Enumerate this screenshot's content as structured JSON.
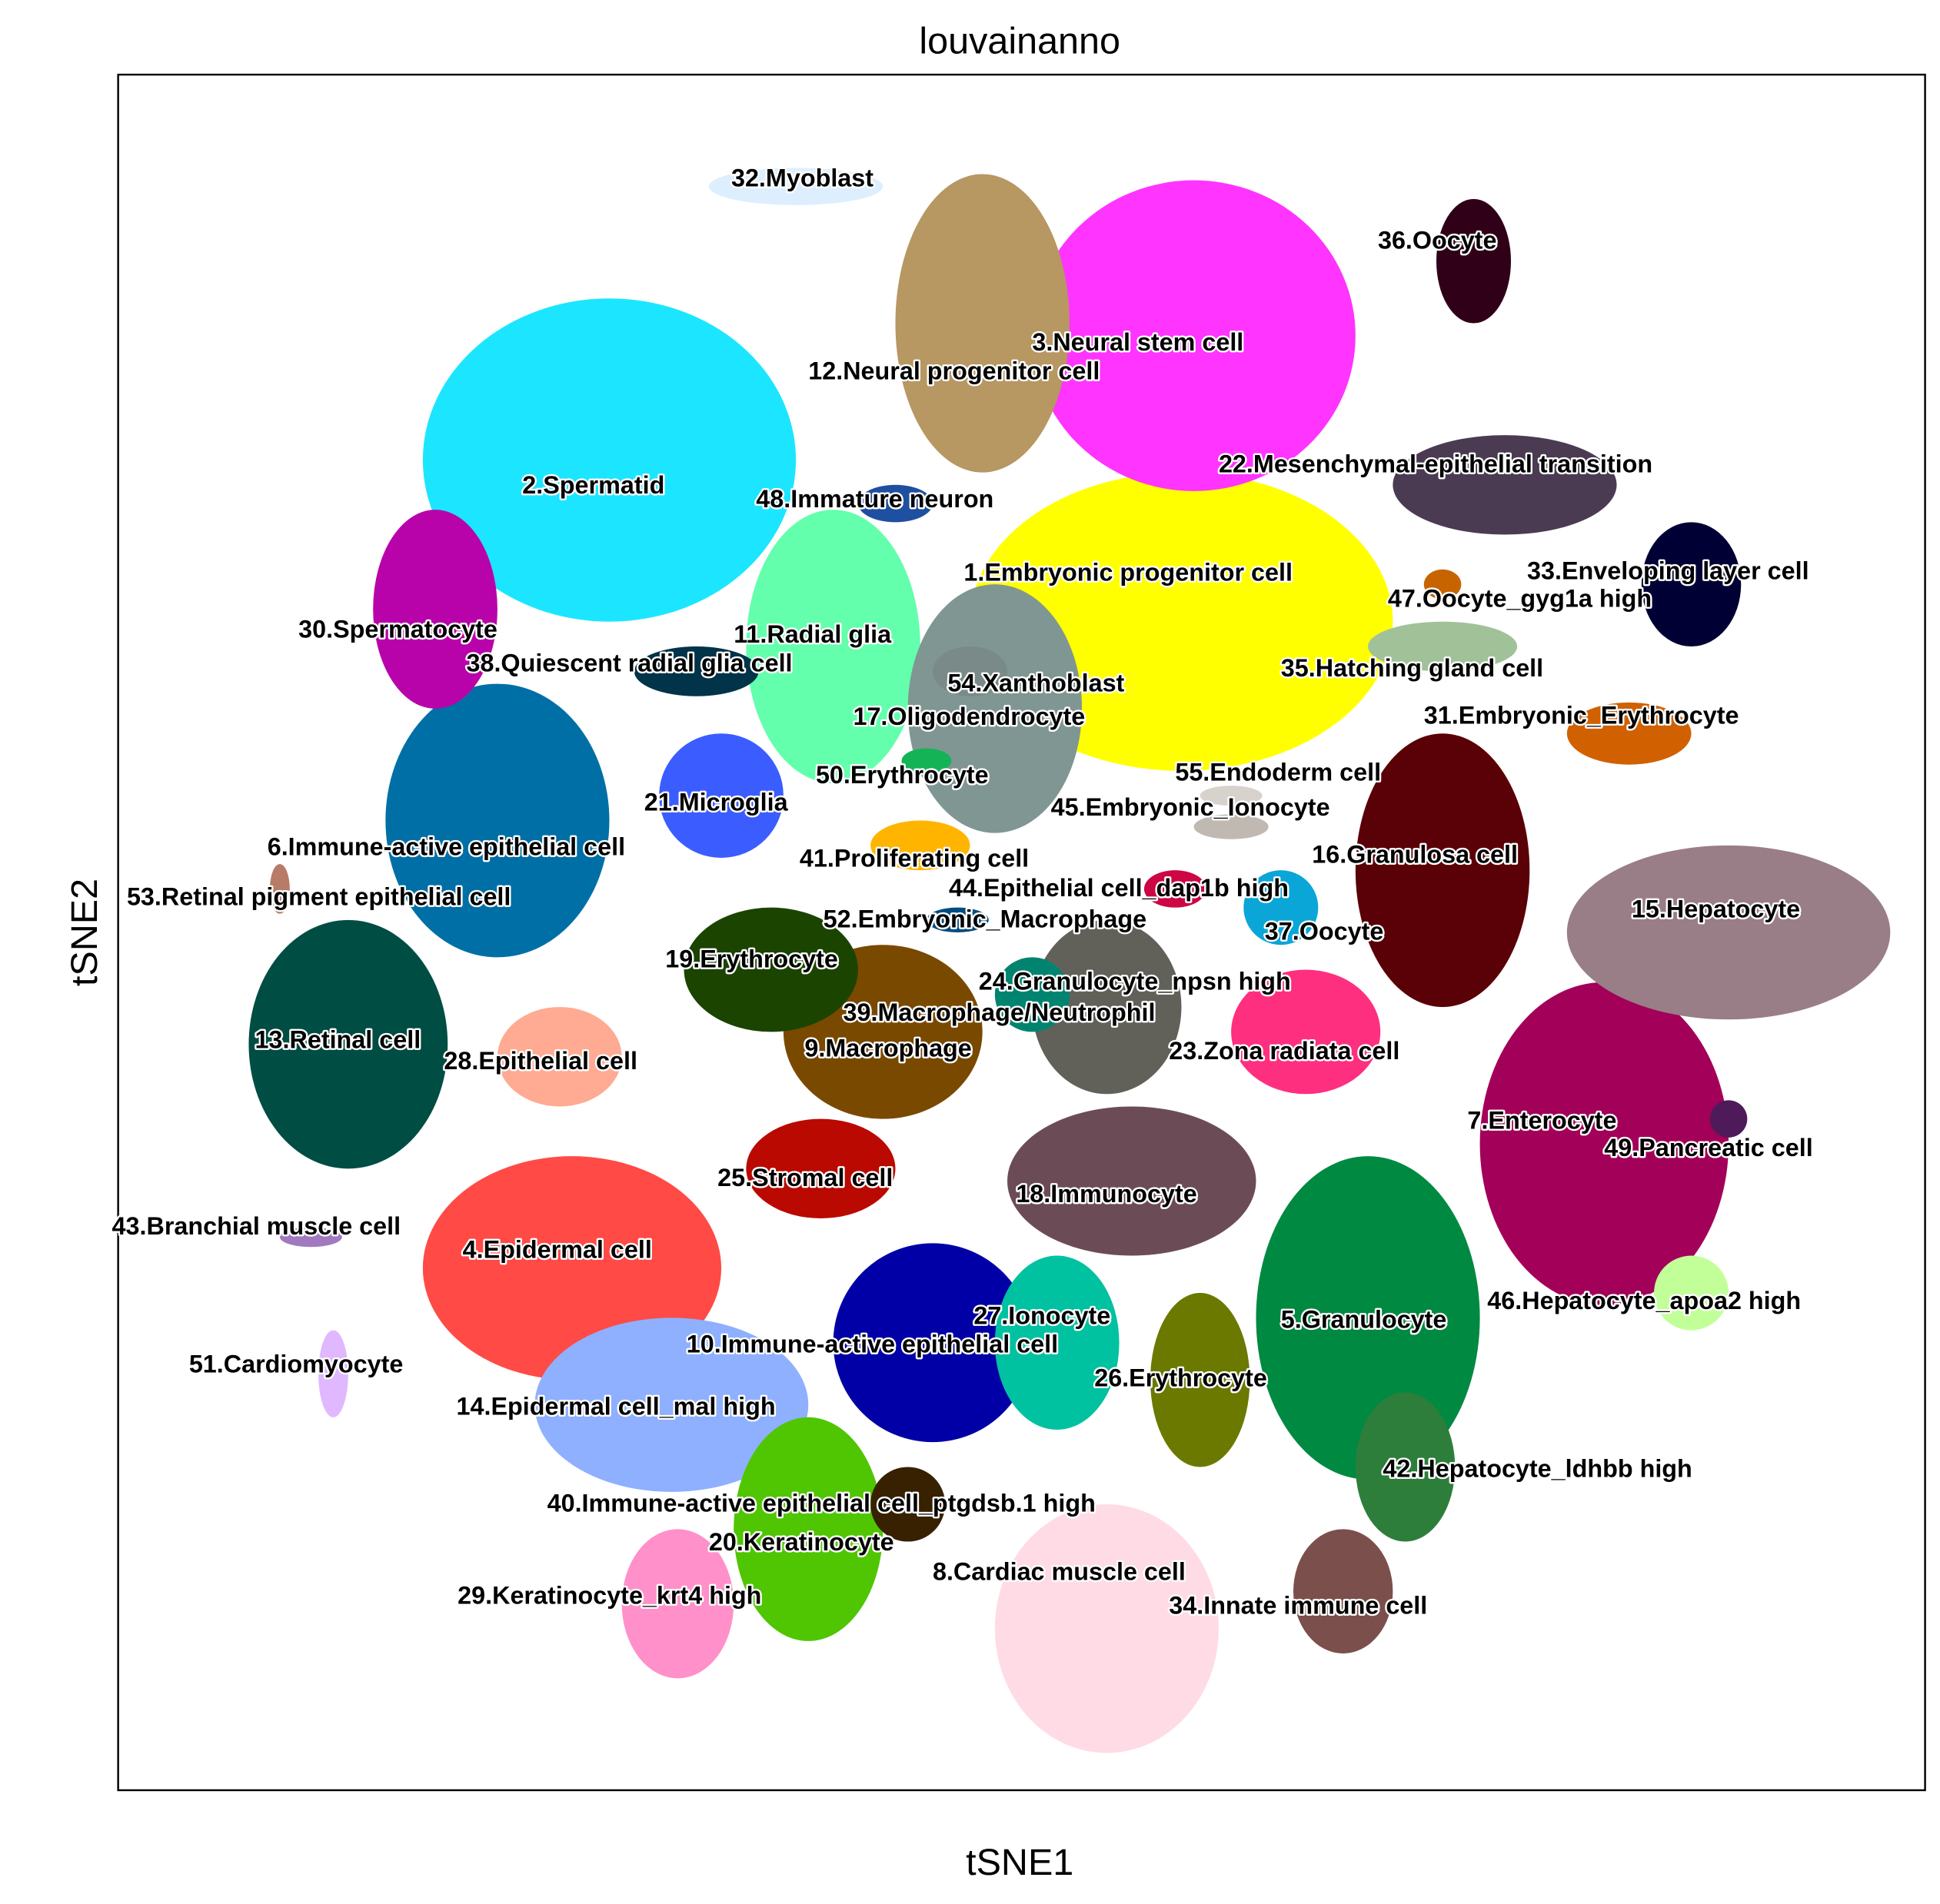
{
  "chart_data": {
    "type": "scatter",
    "title": "louvainanno",
    "xlabel": "tSNE1",
    "ylabel": "tSNE2",
    "clusters": [
      {
        "name": "1.Embryonic progenitor cell",
        "color": "#ffff00"
      },
      {
        "name": "2.Spermatid",
        "color": "#1ce6ff"
      },
      {
        "name": "3.Neural stem cell",
        "color": "#ff34ff"
      },
      {
        "name": "4.Epidermal cell",
        "color": "#ff4a46"
      },
      {
        "name": "5.Granulocyte",
        "color": "#008941"
      },
      {
        "name": "6.Immune-active epithelial cell",
        "color": "#006fa6"
      },
      {
        "name": "7.Enterocyte",
        "color": "#a30059"
      },
      {
        "name": "8.Cardiac muscle cell",
        "color": "#ffdbe5"
      },
      {
        "name": "9.Macrophage",
        "color": "#7a4900"
      },
      {
        "name": "10.Immune-active epithelial cell",
        "color": "#0000a6"
      },
      {
        "name": "11.Radial glia",
        "color": "#63ffac"
      },
      {
        "name": "12.Neural progenitor cell",
        "color": "#b79762"
      },
      {
        "name": "13.Retinal  cell",
        "color": "#004d43"
      },
      {
        "name": "14.Epidermal cell_mal high",
        "color": "#8fb0ff"
      },
      {
        "name": "15.Hepatocyte",
        "color": "#997d87"
      },
      {
        "name": "16.Granulosa cell",
        "color": "#5a0007"
      },
      {
        "name": "17.Oligodendrocyte",
        "color": "#809693"
      },
      {
        "name": "18.Immunocyte",
        "color": "#6b4c56"
      },
      {
        "name": "19.Erythrocyte",
        "color": "#1b4400"
      },
      {
        "name": "20.Keratinocyte",
        "color": "#4fc601"
      },
      {
        "name": "21.Microglia",
        "color": "#3b5dff"
      },
      {
        "name": "22.Mesenchymal-epithelial transition",
        "color": "#4a3b53"
      },
      {
        "name": "23.Zona radiata cell",
        "color": "#ff2f80"
      },
      {
        "name": "24.Granulocyte_npsn high",
        "color": "#61615a"
      },
      {
        "name": "25.Stromal cell",
        "color": "#ba0900"
      },
      {
        "name": "26.Erythrocyte",
        "color": "#6b7900"
      },
      {
        "name": "27.Ionocyte",
        "color": "#00c2a0"
      },
      {
        "name": "28.Epithelial cell",
        "color": "#ffaa92"
      },
      {
        "name": "29.Keratinocyte_krt4 high",
        "color": "#ff90c9"
      },
      {
        "name": "30.Spermatocyte",
        "color": "#b903aa"
      },
      {
        "name": "31.Embryonic_Erythrocyte",
        "color": "#d16100"
      },
      {
        "name": "32.Myoblast",
        "color": "#ddefff"
      },
      {
        "name": "33.Enveloping layer cell",
        "color": "#000035"
      },
      {
        "name": "34.Innate immune cell",
        "color": "#7b4f4b"
      },
      {
        "name": "35.Hatching gland cell",
        "color": "#a1c299"
      },
      {
        "name": "36.Oocyte",
        "color": "#300018"
      },
      {
        "name": "37.Oocyte",
        "color": "#0aa6d8"
      },
      {
        "name": "38.Quiescent radial glia cell",
        "color": "#013349"
      },
      {
        "name": "39.Macrophage/Neutrophil",
        "color": "#00846f"
      },
      {
        "name": "40.Immune-active epithelial cell_ptgdsb.1 high",
        "color": "#372101"
      },
      {
        "name": "41.Proliferating cell",
        "color": "#ffb500"
      },
      {
        "name": "42.Hepatocyte_ldhbb high",
        "color": "#2d7e3b"
      },
      {
        "name": "43.Branchial muscle cell",
        "color": "#a079bf"
      },
      {
        "name": "44.Epithelial cell_dap1b high",
        "color": "#cc0744"
      },
      {
        "name": "45.Embryonic_Ionocyte",
        "color": "#c0b9b2"
      },
      {
        "name": "46.Hepatocyte_apoa2 high",
        "color": "#c2ff99"
      },
      {
        "name": "47.Oocyte_gyg1a high",
        "color": "#c86400"
      },
      {
        "name": "48.Immature neuron",
        "color": "#1f4fa0"
      },
      {
        "name": "49.Pancreatic cell",
        "color": "#4e1a5a"
      },
      {
        "name": "50.Erythrocyte",
        "color": "#14b356"
      },
      {
        "name": "51.Cardiomyocyte",
        "color": "#e0b8ff"
      },
      {
        "name": "52.Embryonic_Macrophage",
        "color": "#004c80"
      },
      {
        "name": "53.Retinal pigment epithelial cell",
        "color": "#b77b68"
      },
      {
        "name": "54.Xanthoblast",
        "color": "#7a8a88"
      },
      {
        "name": "55.Endoderm cell",
        "color": "#d8d2cc"
      }
    ]
  }
}
